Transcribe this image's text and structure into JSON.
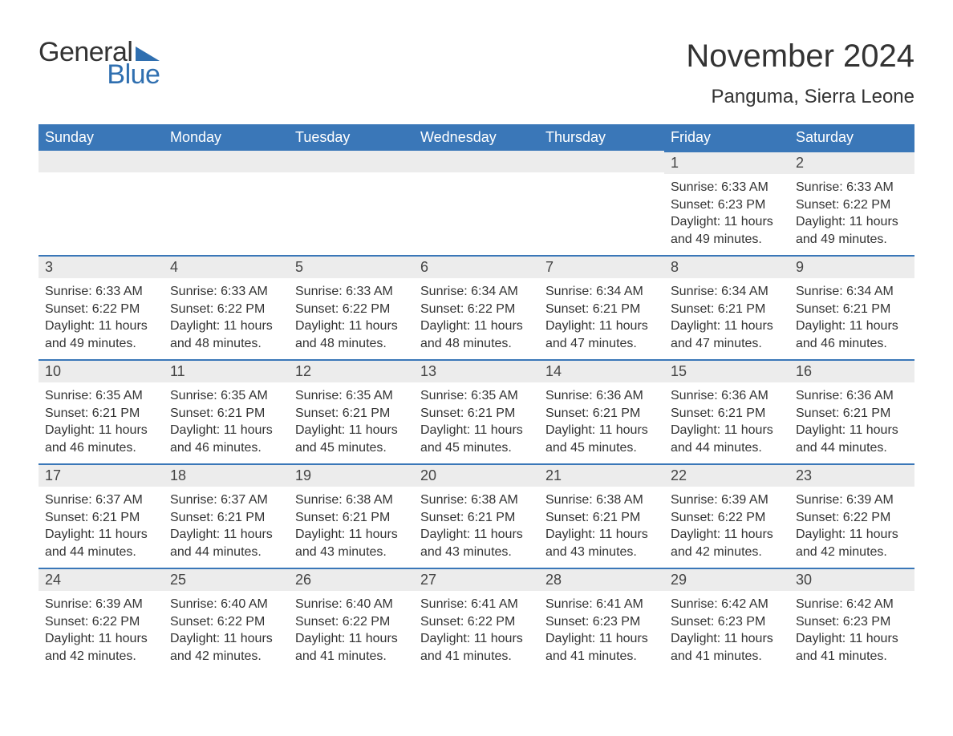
{
  "logo": {
    "text_general": "General",
    "text_blue": "Blue"
  },
  "header": {
    "month_year": "November 2024",
    "location": "Panguma, Sierra Leone"
  },
  "colors": {
    "brand_blue": "#3a77b8",
    "logo_blue": "#2f6fb0",
    "header_row_bg": "#ececec",
    "text": "#333333",
    "white": "#ffffff"
  },
  "weekdays": [
    "Sunday",
    "Monday",
    "Tuesday",
    "Wednesday",
    "Thursday",
    "Friday",
    "Saturday"
  ],
  "first_weekday_index": 5,
  "days": [
    {
      "n": 1,
      "sunrise": "6:33 AM",
      "sunset": "6:23 PM",
      "daylight": "11 hours and 49 minutes."
    },
    {
      "n": 2,
      "sunrise": "6:33 AM",
      "sunset": "6:22 PM",
      "daylight": "11 hours and 49 minutes."
    },
    {
      "n": 3,
      "sunrise": "6:33 AM",
      "sunset": "6:22 PM",
      "daylight": "11 hours and 49 minutes."
    },
    {
      "n": 4,
      "sunrise": "6:33 AM",
      "sunset": "6:22 PM",
      "daylight": "11 hours and 48 minutes."
    },
    {
      "n": 5,
      "sunrise": "6:33 AM",
      "sunset": "6:22 PM",
      "daylight": "11 hours and 48 minutes."
    },
    {
      "n": 6,
      "sunrise": "6:34 AM",
      "sunset": "6:22 PM",
      "daylight": "11 hours and 48 minutes."
    },
    {
      "n": 7,
      "sunrise": "6:34 AM",
      "sunset": "6:21 PM",
      "daylight": "11 hours and 47 minutes."
    },
    {
      "n": 8,
      "sunrise": "6:34 AM",
      "sunset": "6:21 PM",
      "daylight": "11 hours and 47 minutes."
    },
    {
      "n": 9,
      "sunrise": "6:34 AM",
      "sunset": "6:21 PM",
      "daylight": "11 hours and 46 minutes."
    },
    {
      "n": 10,
      "sunrise": "6:35 AM",
      "sunset": "6:21 PM",
      "daylight": "11 hours and 46 minutes."
    },
    {
      "n": 11,
      "sunrise": "6:35 AM",
      "sunset": "6:21 PM",
      "daylight": "11 hours and 46 minutes."
    },
    {
      "n": 12,
      "sunrise": "6:35 AM",
      "sunset": "6:21 PM",
      "daylight": "11 hours and 45 minutes."
    },
    {
      "n": 13,
      "sunrise": "6:35 AM",
      "sunset": "6:21 PM",
      "daylight": "11 hours and 45 minutes."
    },
    {
      "n": 14,
      "sunrise": "6:36 AM",
      "sunset": "6:21 PM",
      "daylight": "11 hours and 45 minutes."
    },
    {
      "n": 15,
      "sunrise": "6:36 AM",
      "sunset": "6:21 PM",
      "daylight": "11 hours and 44 minutes."
    },
    {
      "n": 16,
      "sunrise": "6:36 AM",
      "sunset": "6:21 PM",
      "daylight": "11 hours and 44 minutes."
    },
    {
      "n": 17,
      "sunrise": "6:37 AM",
      "sunset": "6:21 PM",
      "daylight": "11 hours and 44 minutes."
    },
    {
      "n": 18,
      "sunrise": "6:37 AM",
      "sunset": "6:21 PM",
      "daylight": "11 hours and 44 minutes."
    },
    {
      "n": 19,
      "sunrise": "6:38 AM",
      "sunset": "6:21 PM",
      "daylight": "11 hours and 43 minutes."
    },
    {
      "n": 20,
      "sunrise": "6:38 AM",
      "sunset": "6:21 PM",
      "daylight": "11 hours and 43 minutes."
    },
    {
      "n": 21,
      "sunrise": "6:38 AM",
      "sunset": "6:21 PM",
      "daylight": "11 hours and 43 minutes."
    },
    {
      "n": 22,
      "sunrise": "6:39 AM",
      "sunset": "6:22 PM",
      "daylight": "11 hours and 42 minutes."
    },
    {
      "n": 23,
      "sunrise": "6:39 AM",
      "sunset": "6:22 PM",
      "daylight": "11 hours and 42 minutes."
    },
    {
      "n": 24,
      "sunrise": "6:39 AM",
      "sunset": "6:22 PM",
      "daylight": "11 hours and 42 minutes."
    },
    {
      "n": 25,
      "sunrise": "6:40 AM",
      "sunset": "6:22 PM",
      "daylight": "11 hours and 42 minutes."
    },
    {
      "n": 26,
      "sunrise": "6:40 AM",
      "sunset": "6:22 PM",
      "daylight": "11 hours and 41 minutes."
    },
    {
      "n": 27,
      "sunrise": "6:41 AM",
      "sunset": "6:22 PM",
      "daylight": "11 hours and 41 minutes."
    },
    {
      "n": 28,
      "sunrise": "6:41 AM",
      "sunset": "6:23 PM",
      "daylight": "11 hours and 41 minutes."
    },
    {
      "n": 29,
      "sunrise": "6:42 AM",
      "sunset": "6:23 PM",
      "daylight": "11 hours and 41 minutes."
    },
    {
      "n": 30,
      "sunrise": "6:42 AM",
      "sunset": "6:23 PM",
      "daylight": "11 hours and 41 minutes."
    }
  ],
  "labels": {
    "sunrise_prefix": "Sunrise: ",
    "sunset_prefix": "Sunset: ",
    "daylight_prefix": "Daylight: "
  }
}
